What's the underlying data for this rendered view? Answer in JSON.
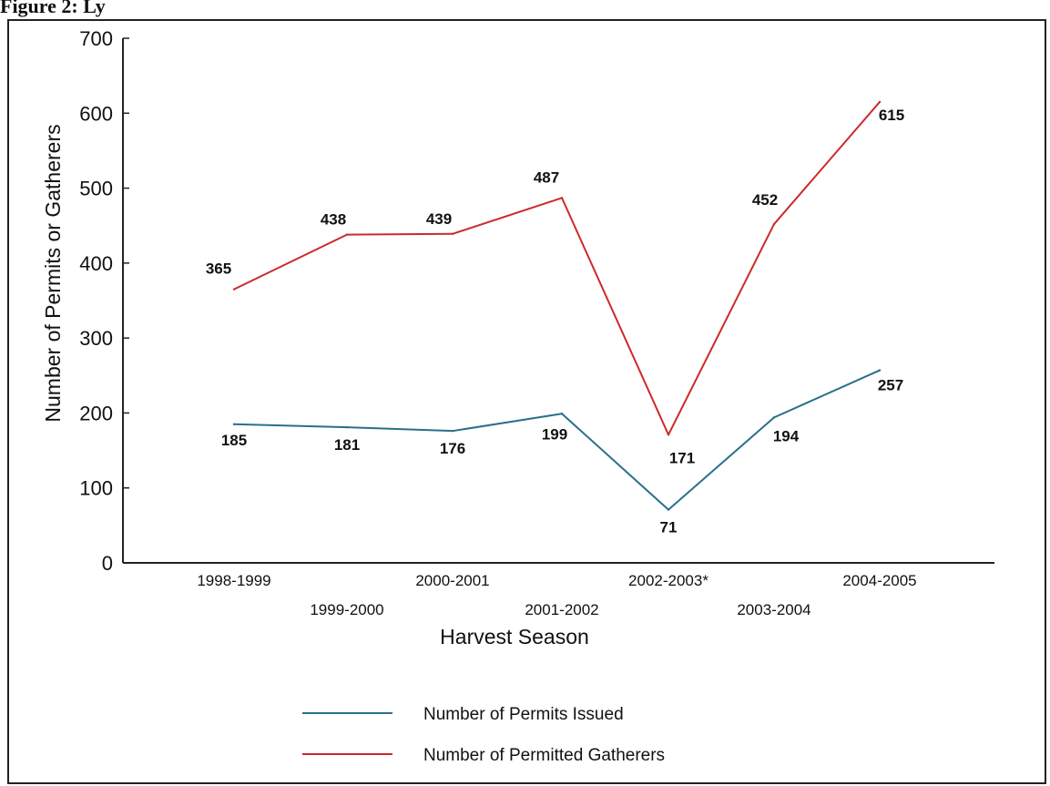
{
  "header_fragment": "Figure 2: Ly",
  "chart_data": {
    "type": "line",
    "title": "",
    "xlabel": "Harvest Season",
    "ylabel": "Number of Permits or Gatherers",
    "ylim": [
      0,
      700
    ],
    "yticks": [
      0,
      100,
      200,
      300,
      400,
      500,
      600,
      700
    ],
    "grid": false,
    "legend_position": "bottom-center",
    "categories": [
      "1998-1999",
      "1999-2000",
      "2000-2001",
      "2001-2002",
      "2002-2003*",
      "2003-2004",
      "2004-2005"
    ],
    "series": [
      {
        "name": "Number of Permits Issued",
        "color": "#2a6f8a",
        "values": [
          185,
          181,
          176,
          199,
          71,
          194,
          257
        ]
      },
      {
        "name": "Number of Permitted Gatherers",
        "color": "#cc2a2a",
        "values": [
          365,
          438,
          439,
          487,
          171,
          452,
          615
        ]
      }
    ]
  }
}
